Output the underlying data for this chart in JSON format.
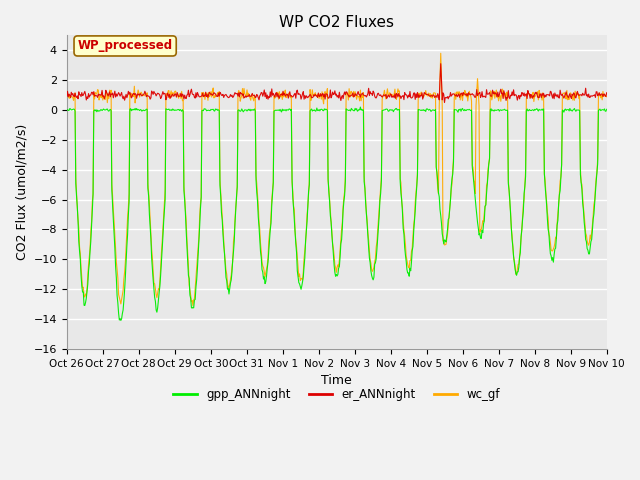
{
  "title": "WP CO2 Fluxes",
  "xlabel": "Time",
  "ylabel": "CO2 Flux (umol/m2/s)",
  "ylim": [
    -16,
    5
  ],
  "yticks": [
    -16,
    -14,
    -12,
    -10,
    -8,
    -6,
    -4,
    -2,
    0,
    2,
    4
  ],
  "x_labels": [
    "Oct 26",
    "Oct 27",
    "Oct 28",
    "Oct 29",
    "Oct 30",
    "Oct 31",
    "Nov 1",
    "Nov 2",
    "Nov 3",
    "Nov 4",
    "Nov 5",
    "Nov 6",
    "Nov 7",
    "Nov 8",
    "Nov 9",
    "Nov 10"
  ],
  "legend_label": "WP_processed",
  "legend_facecolor": "#ffffcc",
  "legend_edgecolor": "#cc0000",
  "bg_color": "#e8e8e8",
  "fig_facecolor": "#f2f2f2",
  "line_green": "#00ee00",
  "line_red": "#dd0000",
  "line_orange": "#ffaa00",
  "grid_color": "#ffffff",
  "n_days": 15,
  "points_per_day": 48,
  "title_fontsize": 11,
  "axis_fontsize": 9,
  "tick_fontsize": 8
}
